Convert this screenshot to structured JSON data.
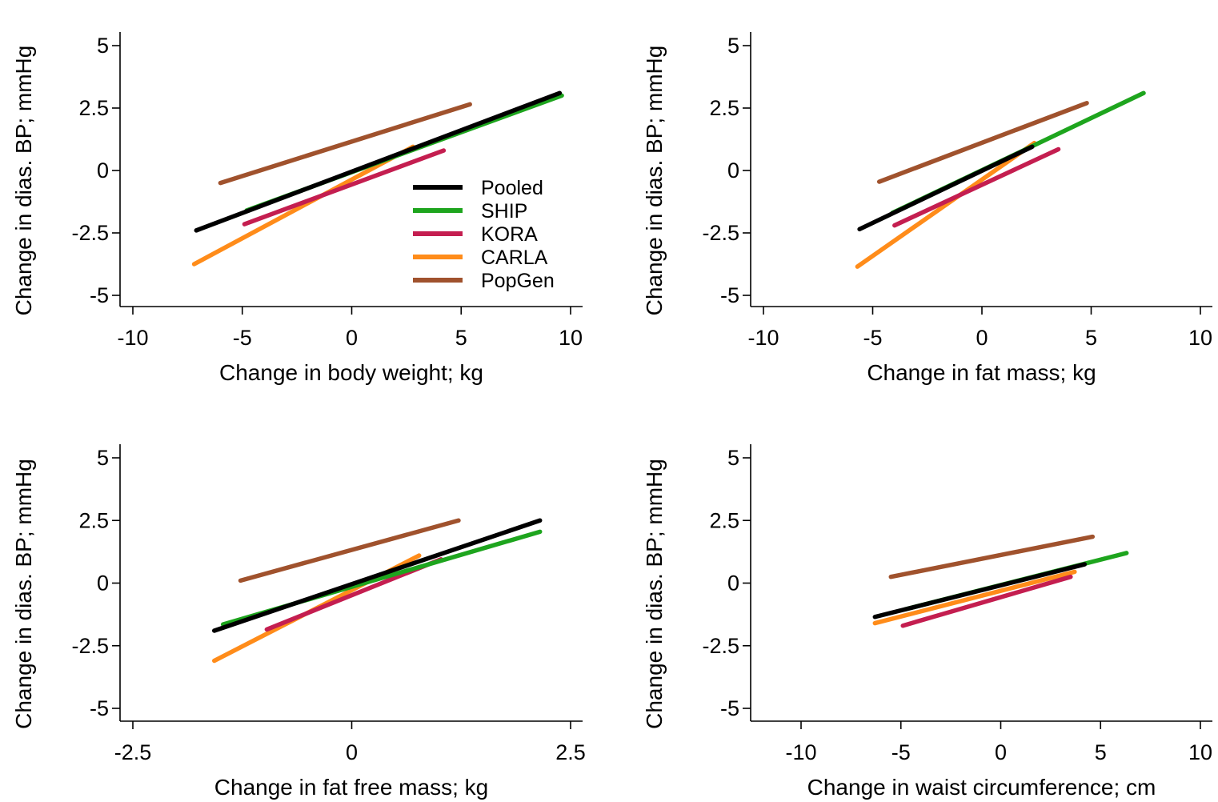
{
  "chart_data": [
    {
      "type": "line",
      "xlabel": "Change in body weight; kg",
      "ylabel": "Change in dias. BP; mmHg",
      "xlim": [
        -10,
        10
      ],
      "ylim": [
        -5,
        5
      ],
      "xticks": [
        -10,
        -5,
        0,
        5,
        10
      ],
      "yticks": [
        -5,
        -2.5,
        0,
        2.5,
        5
      ],
      "xtick_labels": [
        "-10",
        "-5",
        "0",
        "5",
        "10"
      ],
      "ytick_labels": [
        "-5",
        "-2.5",
        "0",
        "2.5",
        "5"
      ],
      "legend": "inside-right",
      "series": [
        {
          "name": "Pooled",
          "color": "#000000",
          "x": [
            -7.1,
            9.5
          ],
          "y": [
            -2.4,
            3.1
          ]
        },
        {
          "name": "SHIP",
          "color": "#1ea51e",
          "x": [
            -4.8,
            9.6
          ],
          "y": [
            -1.6,
            3.0
          ]
        },
        {
          "name": "KORA",
          "color": "#c41e50",
          "x": [
            -4.9,
            4.2
          ],
          "y": [
            -2.15,
            0.8
          ]
        },
        {
          "name": "CARLA",
          "color": "#ff8c1a",
          "x": [
            -7.2,
            2.8
          ],
          "y": [
            -3.75,
            0.95
          ]
        },
        {
          "name": "PopGen",
          "color": "#a0522d",
          "x": [
            -6.0,
            5.4
          ],
          "y": [
            -0.5,
            2.65
          ]
        }
      ]
    },
    {
      "type": "line",
      "xlabel": "Change in fat mass; kg",
      "ylabel": "Change in dias. BP; mmHg",
      "xlim": [
        -10,
        10
      ],
      "ylim": [
        -5,
        5
      ],
      "xticks": [
        -10,
        -5,
        0,
        5,
        10
      ],
      "yticks": [
        -5,
        -2.5,
        0,
        2.5,
        5
      ],
      "xtick_labels": [
        "-10",
        "-5",
        "0",
        "5",
        "10"
      ],
      "ytick_labels": [
        "-5",
        "-2.5",
        "0",
        "2.5",
        "5"
      ],
      "series": [
        {
          "name": "Pooled",
          "color": "#000000",
          "x": [
            -5.6,
            2.3
          ],
          "y": [
            -2.35,
            0.95
          ]
        },
        {
          "name": "SHIP",
          "color": "#1ea51e",
          "x": [
            -4.1,
            7.4
          ],
          "y": [
            -1.7,
            3.1
          ]
        },
        {
          "name": "KORA",
          "color": "#c41e50",
          "x": [
            -4.0,
            3.5
          ],
          "y": [
            -2.2,
            0.85
          ]
        },
        {
          "name": "CARLA",
          "color": "#ff8c1a",
          "x": [
            -5.7,
            2.4
          ],
          "y": [
            -3.85,
            1.1
          ]
        },
        {
          "name": "PopGen",
          "color": "#a0522d",
          "x": [
            -4.7,
            4.8
          ],
          "y": [
            -0.45,
            2.7
          ]
        }
      ]
    },
    {
      "type": "line",
      "xlabel": "Change in fat free mass; kg",
      "ylabel": "Change in dias. BP; mmHg",
      "xlim": [
        -2.5,
        2.5
      ],
      "ylim": [
        -5,
        5
      ],
      "xticks": [
        -2.5,
        0,
        2.5
      ],
      "yticks": [
        -5,
        -2.5,
        0,
        2.5,
        5
      ],
      "xtick_labels": [
        "-2.5",
        "0",
        "2.5"
      ],
      "ytick_labels": [
        "-5",
        "-2.5",
        "0",
        "2.5",
        "5"
      ],
      "series": [
        {
          "name": "Pooled",
          "color": "#000000",
          "x": [
            -1.57,
            2.15
          ],
          "y": [
            -1.9,
            2.5
          ]
        },
        {
          "name": "SHIP",
          "color": "#1ea51e",
          "x": [
            -1.47,
            2.15
          ],
          "y": [
            -1.65,
            2.05
          ]
        },
        {
          "name": "KORA",
          "color": "#c41e50",
          "x": [
            -0.97,
            1.02
          ],
          "y": [
            -1.85,
            0.95
          ]
        },
        {
          "name": "CARLA",
          "color": "#ff8c1a",
          "x": [
            -1.57,
            0.77
          ],
          "y": [
            -3.1,
            1.1
          ]
        },
        {
          "name": "PopGen",
          "color": "#a0522d",
          "x": [
            -1.27,
            1.22
          ],
          "y": [
            0.1,
            2.5
          ]
        }
      ]
    },
    {
      "type": "line",
      "xlabel": "Change in waist circumference; cm",
      "ylabel": "Change in dias. BP; mmHg",
      "xlim": [
        -12.5,
        10
      ],
      "ylim": [
        -5,
        5
      ],
      "xticks": [
        -10,
        -5,
        0,
        5,
        10
      ],
      "yticks": [
        -5,
        -2.5,
        0,
        2.5,
        5
      ],
      "xtick_labels": [
        "-10",
        "-5",
        "0",
        "5",
        "10"
      ],
      "ytick_labels": [
        "-5",
        "-2.5",
        "0",
        "2.5",
        "5"
      ],
      "series": [
        {
          "name": "Pooled",
          "color": "#000000",
          "x": [
            -6.3,
            4.2
          ],
          "y": [
            -1.35,
            0.75
          ]
        },
        {
          "name": "SHIP",
          "color": "#1ea51e",
          "x": [
            -4.8,
            6.3
          ],
          "y": [
            -1.05,
            1.2
          ]
        },
        {
          "name": "KORA",
          "color": "#c41e50",
          "x": [
            -4.9,
            3.5
          ],
          "y": [
            -1.7,
            0.25
          ]
        },
        {
          "name": "CARLA",
          "color": "#ff8c1a",
          "x": [
            -6.3,
            3.7
          ],
          "y": [
            -1.6,
            0.45
          ]
        },
        {
          "name": "PopGen",
          "color": "#a0522d",
          "x": [
            -5.5,
            4.6
          ],
          "y": [
            0.25,
            1.85
          ]
        }
      ]
    }
  ]
}
